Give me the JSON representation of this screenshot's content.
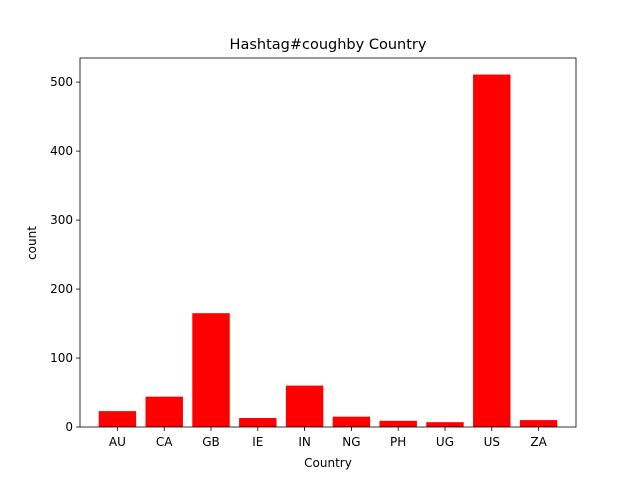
{
  "chart_data": {
    "type": "bar",
    "title": "Hashtag#coughby Country",
    "xlabel": "Country",
    "ylabel": "count",
    "categories": [
      "AU",
      "CA",
      "GB",
      "IE",
      "IN",
      "NG",
      "PH",
      "UG",
      "US",
      "ZA"
    ],
    "values": [
      23,
      44,
      165,
      13,
      60,
      15,
      9,
      7,
      511,
      10
    ],
    "ylim": [
      0,
      535
    ],
    "yticks": [
      0,
      100,
      200,
      300,
      400,
      500
    ],
    "bar_color": "#ff0000",
    "grid": false,
    "legend": "none"
  }
}
